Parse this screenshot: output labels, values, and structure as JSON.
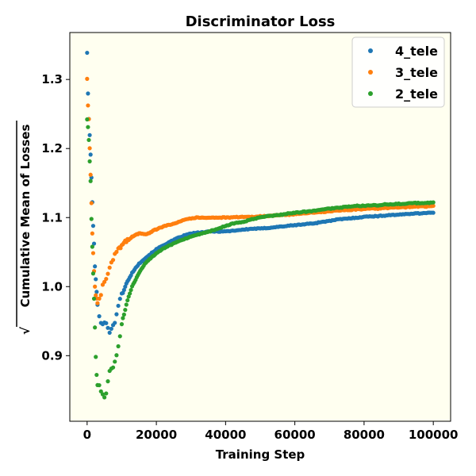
{
  "chart_data": {
    "type": "scatter",
    "title": "Discriminator Loss",
    "xlabel": "Training Step",
    "ylabel": "Cumulative Mean of Losses",
    "ylabel_prefix": "√",
    "xlim": [
      -5000,
      105000
    ],
    "ylim": [
      0.805,
      1.368
    ],
    "xticks": [
      0,
      20000,
      40000,
      60000,
      80000,
      100000
    ],
    "yticks": [
      0.9,
      1.0,
      1.1,
      1.2,
      1.3
    ],
    "grid": false,
    "legend_position": "top-right",
    "plot_background": "#fffff0",
    "series": [
      {
        "name": "4_tele",
        "color": "#1f77b4",
        "points": [
          [
            0,
            1.34
          ],
          [
            250,
            1.28
          ],
          [
            500,
            1.24
          ],
          [
            750,
            1.22
          ],
          [
            1000,
            1.19
          ],
          [
            1250,
            1.16
          ],
          [
            1500,
            1.12
          ],
          [
            1750,
            1.09
          ],
          [
            2000,
            1.06
          ],
          [
            2250,
            1.03
          ],
          [
            2500,
            1.01
          ],
          [
            2750,
            0.99
          ],
          [
            3000,
            0.975
          ],
          [
            3500,
            0.96
          ],
          [
            4000,
            0.95
          ],
          [
            4500,
            0.945
          ],
          [
            5000,
            0.95
          ],
          [
            5500,
            0.945
          ],
          [
            6000,
            0.94
          ],
          [
            6500,
            0.935
          ],
          [
            7000,
            0.94
          ],
          [
            7500,
            0.945
          ],
          [
            8000,
            0.95
          ],
          [
            8500,
            0.96
          ],
          [
            9000,
            0.97
          ],
          [
            9500,
            0.98
          ],
          [
            10000,
            0.99
          ],
          [
            11000,
            1.0
          ],
          [
            12000,
            1.01
          ],
          [
            13000,
            1.02
          ],
          [
            14000,
            1.027
          ],
          [
            15000,
            1.033
          ],
          [
            16000,
            1.038
          ],
          [
            17000,
            1.042
          ],
          [
            18000,
            1.046
          ],
          [
            19000,
            1.05
          ],
          [
            20000,
            1.054
          ],
          [
            22000,
            1.06
          ],
          [
            24000,
            1.065
          ],
          [
            26000,
            1.07
          ],
          [
            28000,
            1.074
          ],
          [
            30000,
            1.077
          ],
          [
            32000,
            1.078
          ],
          [
            34000,
            1.079
          ],
          [
            36000,
            1.08
          ],
          [
            38000,
            1.08
          ],
          [
            40000,
            1.08
          ],
          [
            42000,
            1.081
          ],
          [
            44000,
            1.082
          ],
          [
            46000,
            1.083
          ],
          [
            48000,
            1.084
          ],
          [
            50000,
            1.084
          ],
          [
            52000,
            1.085
          ],
          [
            54000,
            1.086
          ],
          [
            56000,
            1.087
          ],
          [
            58000,
            1.088
          ],
          [
            60000,
            1.089
          ],
          [
            62000,
            1.09
          ],
          [
            64000,
            1.091
          ],
          [
            66000,
            1.092
          ],
          [
            68000,
            1.094
          ],
          [
            70000,
            1.095
          ],
          [
            72000,
            1.097
          ],
          [
            74000,
            1.098
          ],
          [
            76000,
            1.099
          ],
          [
            78000,
            1.1
          ],
          [
            80000,
            1.101
          ],
          [
            82000,
            1.102
          ],
          [
            84000,
            1.102
          ],
          [
            86000,
            1.103
          ],
          [
            88000,
            1.104
          ],
          [
            90000,
            1.104
          ],
          [
            92000,
            1.105
          ],
          [
            94000,
            1.106
          ],
          [
            96000,
            1.106
          ],
          [
            98000,
            1.107
          ],
          [
            100000,
            1.107
          ]
        ]
      },
      {
        "name": "3_tele",
        "color": "#ff7f0e",
        "points": [
          [
            0,
            1.3
          ],
          [
            250,
            1.265
          ],
          [
            500,
            1.24
          ],
          [
            750,
            1.2
          ],
          [
            1000,
            1.16
          ],
          [
            1250,
            1.12
          ],
          [
            1500,
            1.08
          ],
          [
            1750,
            1.05
          ],
          [
            2000,
            1.02
          ],
          [
            2250,
            1.0
          ],
          [
            2500,
            0.985
          ],
          [
            2750,
            0.98
          ],
          [
            3000,
            0.975
          ],
          [
            3500,
            0.98
          ],
          [
            4000,
            0.99
          ],
          [
            4500,
            1.0
          ],
          [
            5000,
            1.005
          ],
          [
            5500,
            1.01
          ],
          [
            6000,
            1.02
          ],
          [
            6500,
            1.027
          ],
          [
            7000,
            1.035
          ],
          [
            7500,
            1.04
          ],
          [
            8000,
            1.045
          ],
          [
            8500,
            1.05
          ],
          [
            9000,
            1.055
          ],
          [
            10000,
            1.06
          ],
          [
            11000,
            1.065
          ],
          [
            12000,
            1.068
          ],
          [
            13000,
            1.072
          ],
          [
            14000,
            1.075
          ],
          [
            15000,
            1.077
          ],
          [
            16000,
            1.077
          ],
          [
            17000,
            1.076
          ],
          [
            18000,
            1.078
          ],
          [
            19000,
            1.081
          ],
          [
            20000,
            1.083
          ],
          [
            22000,
            1.087
          ],
          [
            24000,
            1.09
          ],
          [
            26000,
            1.093
          ],
          [
            28000,
            1.097
          ],
          [
            30000,
            1.099
          ],
          [
            32000,
            1.1
          ],
          [
            34000,
            1.1
          ],
          [
            36000,
            1.1
          ],
          [
            38000,
            1.1
          ],
          [
            40000,
            1.1
          ],
          [
            42000,
            1.1
          ],
          [
            44000,
            1.101
          ],
          [
            46000,
            1.101
          ],
          [
            48000,
            1.101
          ],
          [
            50000,
            1.102
          ],
          [
            52000,
            1.102
          ],
          [
            54000,
            1.103
          ],
          [
            56000,
            1.104
          ],
          [
            58000,
            1.104
          ],
          [
            60000,
            1.105
          ],
          [
            62000,
            1.106
          ],
          [
            64000,
            1.107
          ],
          [
            66000,
            1.107
          ],
          [
            68000,
            1.108
          ],
          [
            70000,
            1.109
          ],
          [
            72000,
            1.11
          ],
          [
            74000,
            1.111
          ],
          [
            76000,
            1.111
          ],
          [
            78000,
            1.112
          ],
          [
            80000,
            1.112
          ],
          [
            82000,
            1.113
          ],
          [
            84000,
            1.113
          ],
          [
            86000,
            1.114
          ],
          [
            88000,
            1.114
          ],
          [
            90000,
            1.115
          ],
          [
            92000,
            1.115
          ],
          [
            94000,
            1.116
          ],
          [
            96000,
            1.116
          ],
          [
            98000,
            1.116
          ],
          [
            100000,
            1.117
          ]
        ]
      },
      {
        "name": "2_tele",
        "color": "#2ca02c",
        "points": [
          [
            0,
            1.245
          ],
          [
            250,
            1.23
          ],
          [
            500,
            1.21
          ],
          [
            750,
            1.18
          ],
          [
            1000,
            1.15
          ],
          [
            1250,
            1.1
          ],
          [
            1500,
            1.06
          ],
          [
            1750,
            1.02
          ],
          [
            2000,
            0.98
          ],
          [
            2250,
            0.94
          ],
          [
            2500,
            0.9
          ],
          [
            2750,
            0.875
          ],
          [
            3000,
            0.86
          ],
          [
            3500,
            0.855
          ],
          [
            4000,
            0.85
          ],
          [
            4500,
            0.845
          ],
          [
            5000,
            0.84
          ],
          [
            5500,
            0.845
          ],
          [
            6000,
            0.86
          ],
          [
            6500,
            0.875
          ],
          [
            7000,
            0.88
          ],
          [
            7500,
            0.885
          ],
          [
            8000,
            0.89
          ],
          [
            8500,
            0.9
          ],
          [
            9000,
            0.915
          ],
          [
            9500,
            0.93
          ],
          [
            10000,
            0.945
          ],
          [
            11000,
            0.965
          ],
          [
            12000,
            0.985
          ],
          [
            13000,
            1.0
          ],
          [
            14000,
            1.01
          ],
          [
            15000,
            1.02
          ],
          [
            16000,
            1.028
          ],
          [
            17000,
            1.035
          ],
          [
            18000,
            1.04
          ],
          [
            19000,
            1.044
          ],
          [
            20000,
            1.048
          ],
          [
            22000,
            1.055
          ],
          [
            24000,
            1.06
          ],
          [
            26000,
            1.065
          ],
          [
            28000,
            1.069
          ],
          [
            30000,
            1.072
          ],
          [
            32000,
            1.075
          ],
          [
            34000,
            1.078
          ],
          [
            36000,
            1.081
          ],
          [
            38000,
            1.084
          ],
          [
            40000,
            1.088
          ],
          [
            42000,
            1.091
          ],
          [
            44000,
            1.093
          ],
          [
            46000,
            1.095
          ],
          [
            48000,
            1.098
          ],
          [
            50000,
            1.1
          ],
          [
            52000,
            1.102
          ],
          [
            54000,
            1.103
          ],
          [
            56000,
            1.104
          ],
          [
            58000,
            1.106
          ],
          [
            60000,
            1.107
          ],
          [
            62000,
            1.108
          ],
          [
            64000,
            1.109
          ],
          [
            66000,
            1.11
          ],
          [
            68000,
            1.112
          ],
          [
            70000,
            1.113
          ],
          [
            72000,
            1.114
          ],
          [
            74000,
            1.115
          ],
          [
            76000,
            1.116
          ],
          [
            78000,
            1.117
          ],
          [
            80000,
            1.117
          ],
          [
            82000,
            1.118
          ],
          [
            84000,
            1.118
          ],
          [
            86000,
            1.119
          ],
          [
            88000,
            1.119
          ],
          [
            90000,
            1.12
          ],
          [
            92000,
            1.12
          ],
          [
            94000,
            1.121
          ],
          [
            96000,
            1.121
          ],
          [
            98000,
            1.121
          ],
          [
            100000,
            1.122
          ]
        ]
      }
    ]
  }
}
